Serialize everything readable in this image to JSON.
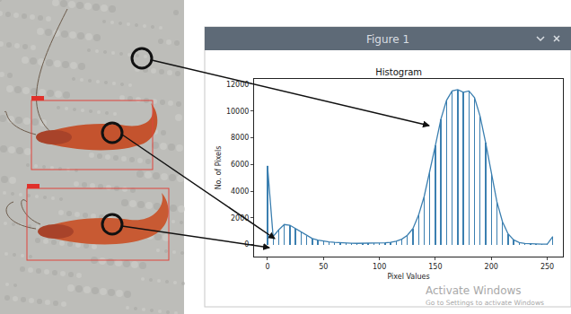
{
  "window": {
    "title": "Figure 1"
  },
  "watermark": [
    "Activate Windows",
    "Go to Settings to activate Windows"
  ],
  "chart_data": {
    "type": "line",
    "title": "Histogram",
    "x_label": "Pixel Values",
    "y_label": "No. of Pixels",
    "x": [
      0,
      5,
      10,
      15,
      20,
      25,
      30,
      35,
      40,
      45,
      50,
      55,
      60,
      65,
      70,
      75,
      80,
      85,
      90,
      95,
      100,
      105,
      110,
      115,
      120,
      125,
      130,
      135,
      140,
      145,
      150,
      155,
      160,
      165,
      170,
      175,
      180,
      185,
      190,
      195,
      200,
      205,
      210,
      215,
      220,
      225,
      230,
      235,
      240,
      245,
      250,
      255
    ],
    "values": [
      5900,
      600,
      1100,
      1500,
      1450,
      1200,
      900,
      650,
      450,
      330,
      250,
      200,
      160,
      130,
      110,
      100,
      90,
      90,
      90,
      100,
      110,
      130,
      170,
      250,
      400,
      700,
      1200,
      2200,
      3600,
      5400,
      7400,
      9400,
      10800,
      11500,
      11600,
      11400,
      11500,
      11000,
      9600,
      7600,
      5300,
      3200,
      1700,
      800,
      350,
      150,
      80,
      50,
      40,
      30,
      30,
      600
    ],
    "color": "#3b7fb0",
    "marker": "stem",
    "xlim": [
      -12,
      264
    ],
    "ylim": [
      -900,
      12400
    ],
    "xticks": [
      0,
      50,
      100,
      150,
      200,
      250
    ],
    "yticks": [
      0,
      2000,
      4000,
      6000,
      8000,
      10000,
      12000
    ],
    "grid": false
  }
}
